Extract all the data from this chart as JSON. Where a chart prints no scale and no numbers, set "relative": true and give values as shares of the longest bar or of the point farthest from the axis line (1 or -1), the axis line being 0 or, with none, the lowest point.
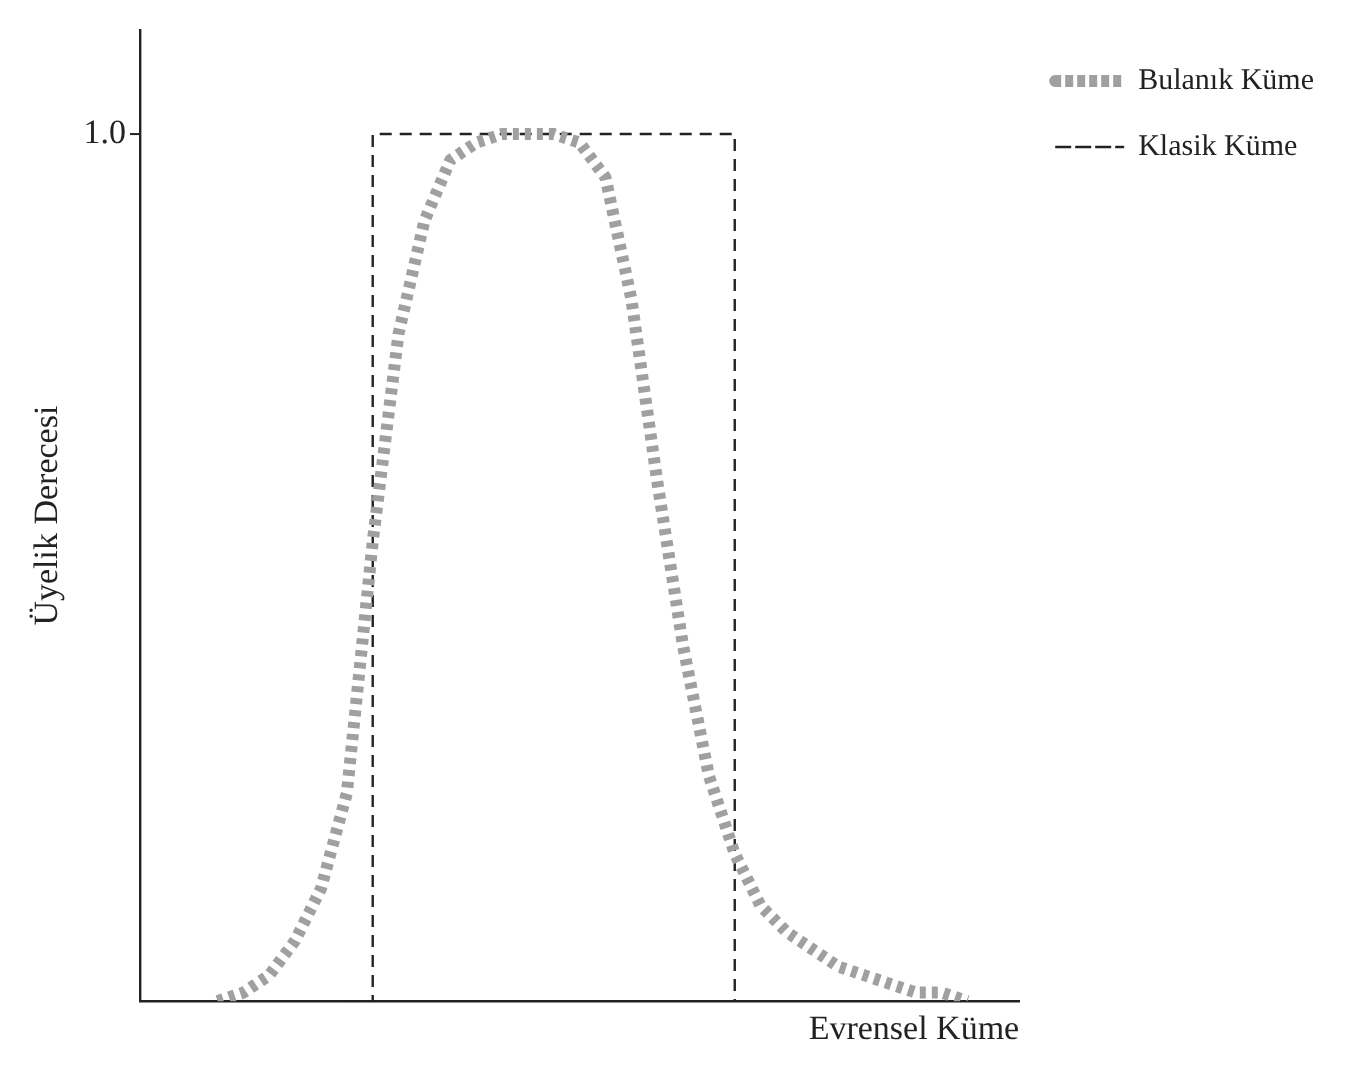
{
  "chart_data": {
    "type": "line",
    "relative": true,
    "xlabel": "Evrensel Küme",
    "ylabel": "Üyelik Derecesi",
    "legend": "top right",
    "grid": false,
    "tick_labels": false,
    "categories": [
      null,
      null,
      null,
      null,
      null,
      null,
      null,
      null,
      null,
      null,
      null,
      null,
      null,
      null,
      null,
      null,
      null,
      null,
      null,
      null,
      null,
      null,
      null,
      null,
      null,
      null,
      null,
      null,
      null,
      null,
      null,
      null,
      null,
      null,
      null
    ],
    "series": [
      {
        "name": "Bulanık Küme",
        "color": "#a0a0a0",
        "line_style": "dotted",
        "values": [
          null,
          null,
          null,
          0,
          0.01,
          0.03,
          0.07,
          0.13,
          0.24,
          0.53,
          0.77,
          0.9,
          0.97,
          0.99,
          1,
          1,
          1,
          0.99,
          0.95,
          0.81,
          0.6,
          0.41,
          0.26,
          0.17,
          0.11,
          0.08,
          0.06,
          0.04,
          0.03,
          0.02,
          0.01,
          0.01,
          0,
          null,
          null
        ]
      },
      {
        "name": "Klasik Küme",
        "type": "step",
        "color": "#222222",
        "line_style": "dashed",
        "values": [
          null,
          null,
          null,
          null,
          null,
          null,
          null,
          null,
          0,
          1,
          1,
          1,
          1,
          1,
          1,
          1,
          1,
          1,
          1,
          1,
          1,
          1,
          1,
          0,
          null,
          null,
          null,
          null,
          null,
          null,
          null,
          null,
          null,
          null,
          null
        ]
      }
    ],
    "annotations": [
      "1.0"
    ]
  }
}
